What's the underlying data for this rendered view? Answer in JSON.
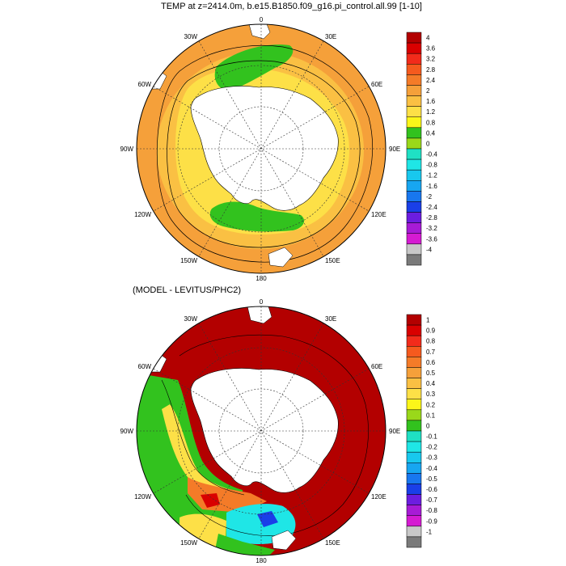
{
  "panels": [
    {
      "id": "temp",
      "title": "TEMP at z=2414.0m, b.e15.B1850.f09_g16.pi_control.all.99 [1-10]",
      "lon_labels": {
        "n": "0",
        "ne": "30E",
        "ene": "60E",
        "e": "90E",
        "ese": "120E",
        "se": "150E",
        "s": "180",
        "sw": "150W",
        "wsw": "120W",
        "w": "90W",
        "wnw": "60W",
        "nw": "30W"
      },
      "colorbar": {
        "labels": [
          "4",
          "3.6",
          "3.2",
          "2.8",
          "2.4",
          "2",
          "1.6",
          "1.2",
          "0.8",
          "0.4",
          "0",
          "-0.4",
          "-0.8",
          "-1.2",
          "-1.6",
          "-2",
          "-2.4",
          "-2.8",
          "-3.2",
          "-3.6",
          "-4"
        ],
        "colors": [
          "#b30000",
          "#d90000",
          "#f22b1b",
          "#f55a1e",
          "#f47b28",
          "#f5a03a",
          "#fac043",
          "#fde047",
          "#fbf619",
          "#32c21e",
          "#9ad81a",
          "#1fe0c4",
          "#1fe6e6",
          "#18c8ee",
          "#17a6f1",
          "#1877ef",
          "#1a3fe8",
          "#6c1de0",
          "#a71bd6",
          "#d51bd2",
          "#c8c8c8",
          "#7a7a7a"
        ]
      }
    },
    {
      "id": "diff",
      "title": "(MODEL - LEVITUS/PHC2)",
      "lon_labels": {
        "n": "0",
        "ne": "30E",
        "ene": "60E",
        "e": "90E",
        "ese": "120E",
        "se": "150E",
        "s": "180",
        "sw": "150W",
        "wsw": "120W",
        "w": "90W",
        "wnw": "60W",
        "nw": "30W"
      },
      "colorbar": {
        "labels": [
          "1",
          "0.9",
          "0.8",
          "0.7",
          "0.6",
          "0.5",
          "0.4",
          "0.3",
          "0.2",
          "0.1",
          "0",
          "-0.1",
          "-0.2",
          "-0.3",
          "-0.4",
          "-0.5",
          "-0.6",
          "-0.7",
          "-0.8",
          "-0.9",
          "-1"
        ],
        "colors": [
          "#b30000",
          "#d90000",
          "#f22b1b",
          "#f55a1e",
          "#f47b28",
          "#f5a03a",
          "#fac043",
          "#fde047",
          "#fbf619",
          "#9ad81a",
          "#32c21e",
          "#1fe0c4",
          "#1fe6e6",
          "#18c8ee",
          "#17a6f1",
          "#1877ef",
          "#1a3fe8",
          "#6c1de0",
          "#a71bd6",
          "#d51bd2",
          "#c8c8c8",
          "#7a7a7a"
        ]
      }
    }
  ],
  "colors": {
    "land": "#ffffff",
    "coast": "#000000"
  }
}
